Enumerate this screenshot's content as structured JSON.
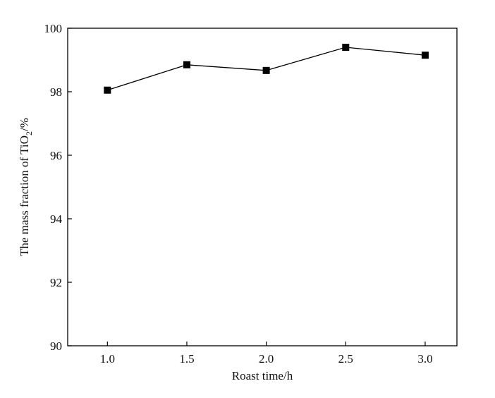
{
  "chart_data": {
    "type": "line",
    "title": "",
    "xlabel": "Roast time/h",
    "ylabel": {
      "prefix": "The mass fraction of TiO",
      "subscript": "2",
      "suffix": "/%"
    },
    "x": [
      1.0,
      1.5,
      2.0,
      2.5,
      3.0
    ],
    "x_tick_labels": [
      "1.0",
      "1.5",
      "2.0",
      "2.5",
      "3.0"
    ],
    "y_ticks": [
      90,
      92,
      94,
      96,
      98,
      100
    ],
    "y_tick_labels": [
      "90",
      "92",
      "94",
      "96",
      "98",
      "100"
    ],
    "xlim": [
      0.75,
      3.2
    ],
    "ylim": [
      90,
      100
    ],
    "series": [
      {
        "values": [
          98.05,
          98.85,
          98.67,
          99.4,
          99.15
        ],
        "marker": "square",
        "color": "#000000"
      }
    ],
    "grid": false,
    "legend": "none"
  }
}
